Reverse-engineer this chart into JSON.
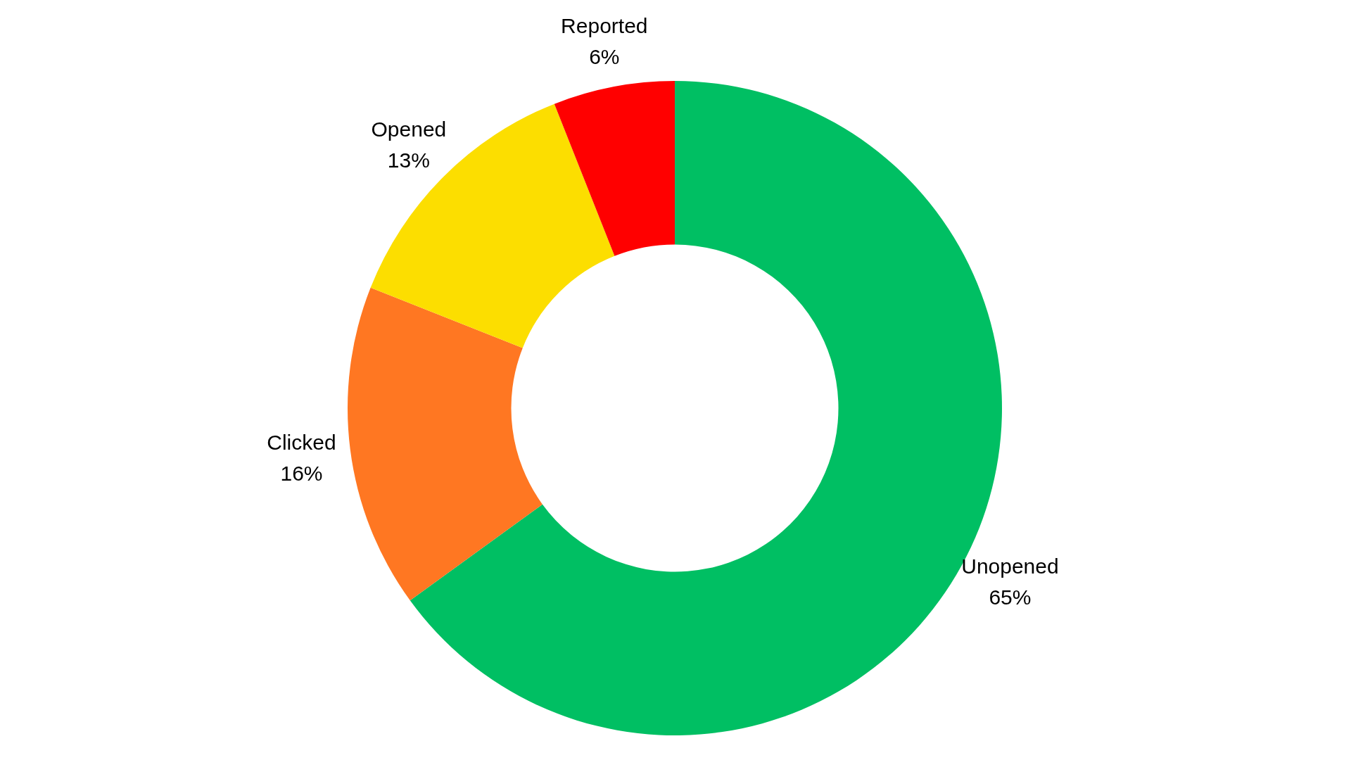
{
  "chart_data": {
    "type": "donut",
    "categories": [
      "Unopened",
      "Clicked",
      "Opened",
      "Reported"
    ],
    "values": [
      65,
      16,
      13,
      6
    ],
    "colors": [
      "#00bf63",
      "#ff7722",
      "#fcde00",
      "#ff0000"
    ],
    "value_labels": [
      "65%",
      "16%",
      "13%",
      "6%"
    ]
  }
}
